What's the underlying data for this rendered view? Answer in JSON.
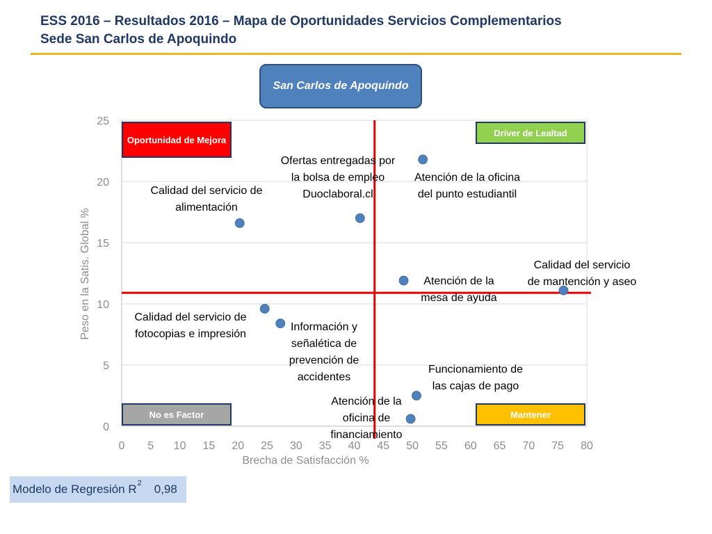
{
  "header": {
    "title_line1": "ESS 2016 – Resultados 2016 – Mapa de Oportunidades Servicios Complementarios",
    "title_line2": "Sede San Carlos de Apoquindo"
  },
  "location_label": "San Carlos de Apoquindo",
  "quadrants": {
    "top_left": "Oportunidad de Mejora",
    "top_right": "Driver de Lealtad",
    "bottom_left": "No es Factor",
    "bottom_right": "Mantener"
  },
  "regression": {
    "label": "Modelo de Regresión R",
    "superscript": "2",
    "value": "0,98"
  },
  "colors": {
    "point": "#4f81bd",
    "crosshair": "#e00000",
    "grid": "#d9d9d9",
    "axis_text": "#8c8c8c"
  },
  "chart_data": {
    "type": "scatter",
    "xlabel": "Brecha de Satisfacción %",
    "ylabel": "Peso en la Satis. Global %",
    "xlim": [
      0,
      80
    ],
    "ylim": [
      0,
      25
    ],
    "xticks": [
      0,
      5,
      10,
      15,
      20,
      25,
      30,
      35,
      40,
      45,
      50,
      55,
      60,
      65,
      70,
      75,
      80
    ],
    "yticks": [
      0,
      5,
      10,
      15,
      20,
      25
    ],
    "grid": true,
    "reference_lines": {
      "x": 43.5,
      "y": 10.9
    },
    "points": [
      {
        "label": "Calidad del servicio de alimentación",
        "x": 20.3,
        "y": 16.6
      },
      {
        "label": "Ofertas entregadas por la bolsa de empleo Duoclaboral.cl",
        "x": 41.0,
        "y": 17.0
      },
      {
        "label": "Atención de la oficina del punto estudiantil",
        "x": 51.8,
        "y": 21.8
      },
      {
        "label": "Atención de la mesa de ayuda",
        "x": 48.5,
        "y": 11.9
      },
      {
        "label": "Calidad del servicio de mantención y aseo",
        "x": 76.0,
        "y": 11.1
      },
      {
        "label": "Calidad del servicio de fotocopias e impresión",
        "x": 24.6,
        "y": 9.6
      },
      {
        "label": "Información y señalética de prevención de accidentes",
        "x": 27.3,
        "y": 8.4
      },
      {
        "label": "Funcionamiento de las cajas de pago",
        "x": 50.7,
        "y": 2.5
      },
      {
        "label": "Atención de la oficina de financiamiento",
        "x": 49.7,
        "y": 0.6
      }
    ]
  }
}
